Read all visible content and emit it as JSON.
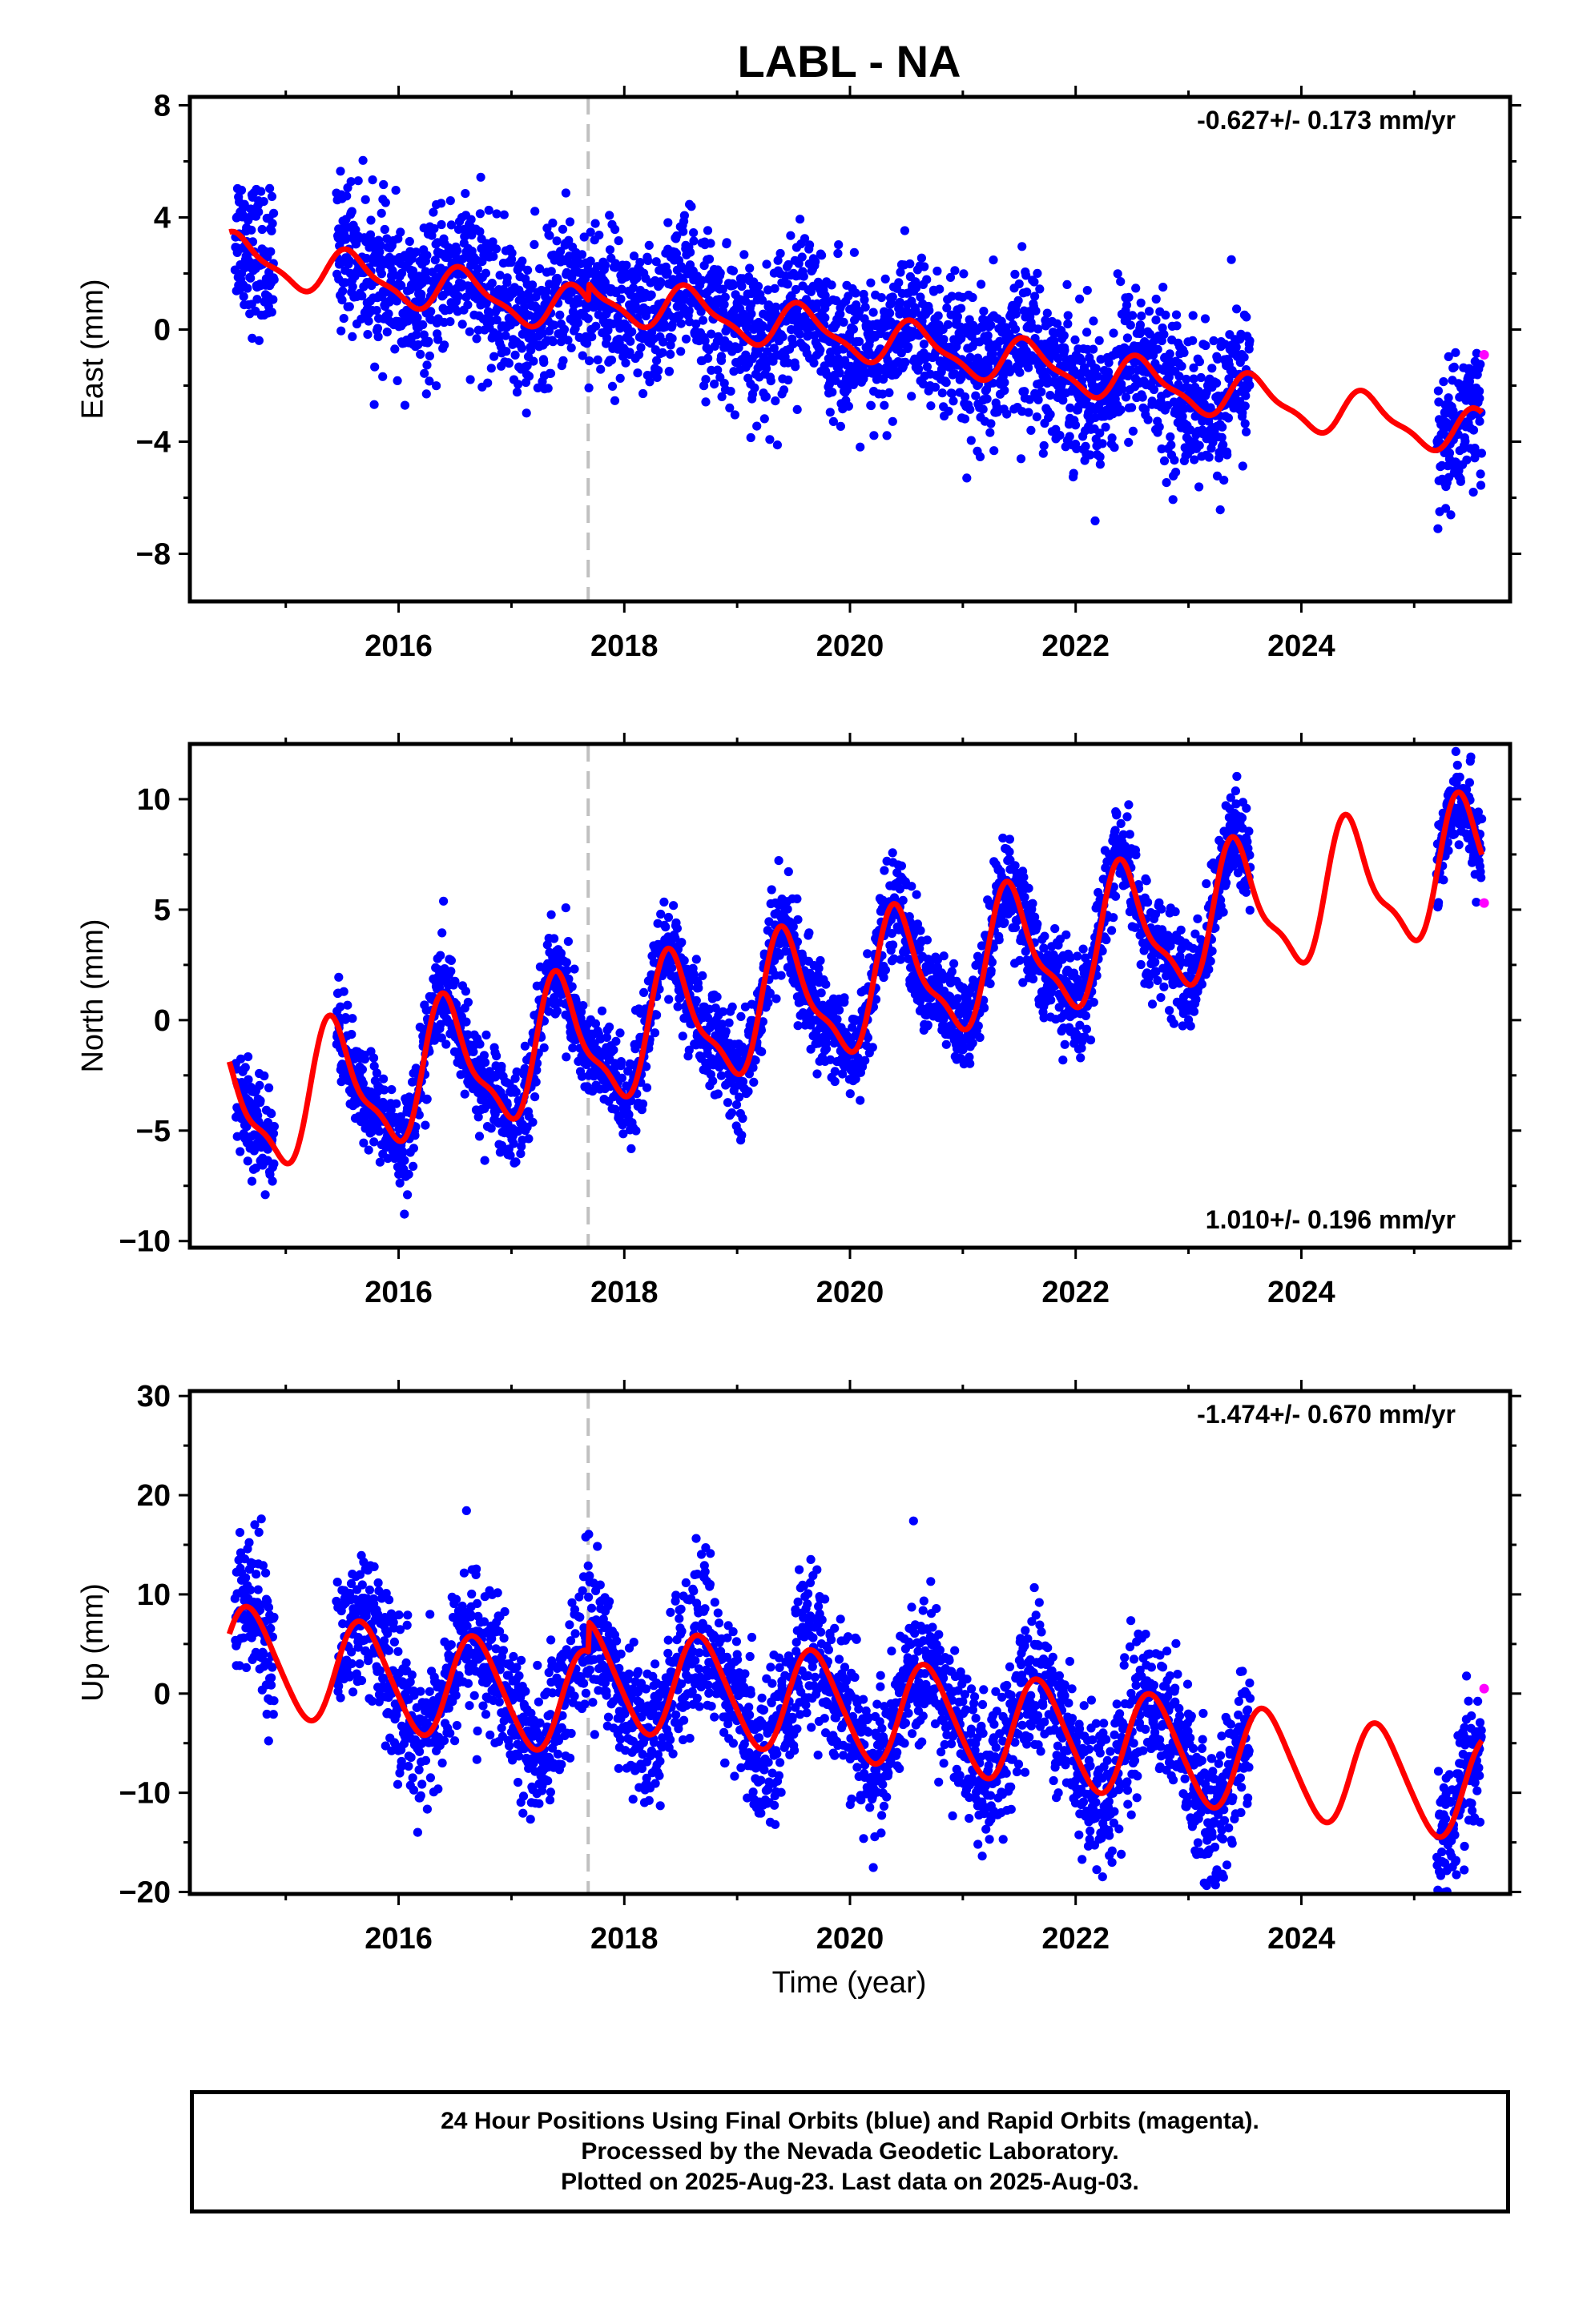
{
  "title": "LABL - NA",
  "xlabel": "Time (year)",
  "x_ticks": [
    2016,
    2018,
    2020,
    2022,
    2024
  ],
  "xlim": [
    2014.15,
    2025.85
  ],
  "offset_marker": 2017.68,
  "colors": {
    "final": "#0000ff",
    "rapid": "#ff00ff",
    "model": "#ff0000",
    "offset": "#c0c0c0"
  },
  "footer": {
    "line1": "24 Hour Positions Using Final Orbits (blue) and Rapid Orbits (magenta).",
    "line2": "Processed by the Nevada Geodetic Laboratory.",
    "line3": "Plotted on 2025-Aug-23. Last data on 2025-Aug-03."
  },
  "chart_data": [
    {
      "type": "scatter",
      "component": "east",
      "ylabel": "East (mm)",
      "ylim": [
        -9.7,
        8.3
      ],
      "yticks": [
        -8,
        -4,
        0,
        4,
        8
      ],
      "rate_label": "-0.627+/- 0.173 mm/yr",
      "rate_position": "top-right",
      "model": {
        "intercept": 2.6,
        "rate": -0.627,
        "annual_amp": 0.75,
        "annual_phase": 1.0,
        "semi_amp": 0.25,
        "t0": 2014.5
      },
      "scatter_sd": 1.3,
      "offset_step": 0.6,
      "data_ranges": [
        [
          2014.55,
          2014.9
        ],
        [
          2015.45,
          2023.55
        ],
        [
          2025.2,
          2025.6
        ]
      ],
      "model_range": [
        2014.5,
        2025.6
      ],
      "rapid_points": [
        {
          "x": 2025.62,
          "y": -0.9
        }
      ]
    },
    {
      "type": "scatter",
      "component": "north",
      "ylabel": "North (mm)",
      "ylim": [
        -10.3,
        12.5
      ],
      "yticks": [
        -10,
        -5,
        0,
        5,
        10
      ],
      "rate_label": "1.010+/- 0.196 mm/yr",
      "rate_position": "bottom-right",
      "model": {
        "intercept": -4.2,
        "rate": 1.01,
        "annual_amp": 2.8,
        "annual_phase": 2.0,
        "semi_amp": 0.9,
        "t0": 2014.5
      },
      "scatter_sd": 1.1,
      "offset_step": 0.0,
      "data_ranges": [
        [
          2014.55,
          2014.9
        ],
        [
          2015.45,
          2023.55
        ],
        [
          2025.2,
          2025.6
        ]
      ],
      "model_range": [
        2014.5,
        2025.6
      ],
      "rapid_points": [
        {
          "x": 2025.62,
          "y": 5.3
        }
      ]
    },
    {
      "type": "scatter",
      "component": "up",
      "ylabel": "Up (mm)",
      "ylim": [
        -20.2,
        30.5
      ],
      "yticks": [
        -20,
        -10,
        0,
        10,
        20,
        30
      ],
      "rate_label": "-1.474+/- 0.670 mm/yr",
      "rate_position": "top-right",
      "model": {
        "intercept": 3.6,
        "rate": -1.474,
        "annual_amp": 5.2,
        "annual_phase": 0.4,
        "semi_amp": 0.6,
        "t0": 2014.5
      },
      "scatter_sd": 3.6,
      "offset_step": 3.0,
      "data_ranges": [
        [
          2014.55,
          2014.9
        ],
        [
          2015.45,
          2023.55
        ],
        [
          2025.2,
          2025.6
        ]
      ],
      "model_range": [
        2014.5,
        2025.6
      ],
      "rapid_points": [
        {
          "x": 2025.62,
          "y": 0.5
        }
      ]
    }
  ]
}
